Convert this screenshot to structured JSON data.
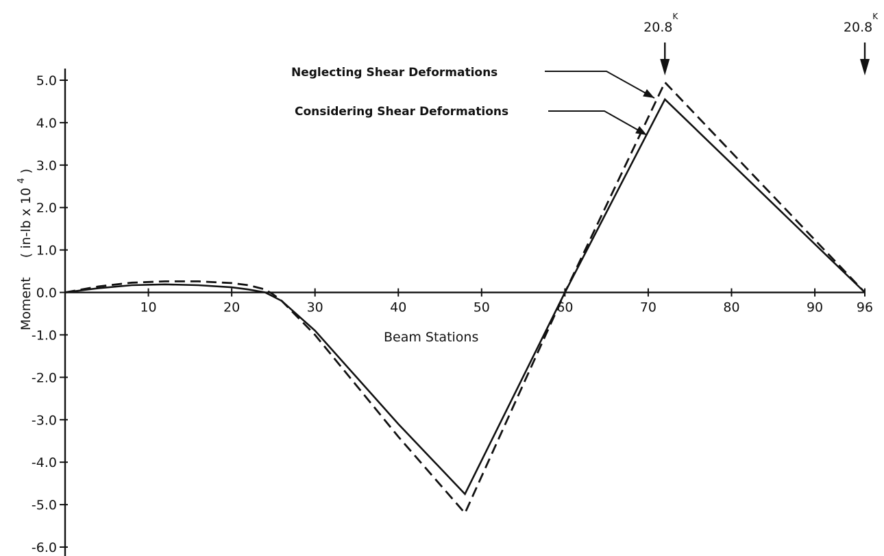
{
  "chart_data": {
    "type": "line",
    "title": "",
    "xlabel": "Beam Stations",
    "ylabel": "Moment",
    "ylabel_units": {
      "prefix": "( in-lb x 10",
      "exponent": "4",
      "suffix": " )"
    },
    "xlim": [
      0,
      96
    ],
    "ylim": [
      -6.0,
      5.0
    ],
    "x_ticks": [
      10,
      20,
      30,
      40,
      50,
      60,
      70,
      80,
      90,
      96
    ],
    "y_ticks": [
      5.0,
      4.0,
      3.0,
      2.0,
      1.0,
      0.0,
      -1.0,
      -2.0,
      -3.0,
      -4.0,
      -5.0,
      -6.0
    ],
    "x_tick_labels": [
      "10",
      "20",
      "30",
      "40",
      "50",
      "60",
      "70",
      "80",
      "90",
      "96"
    ],
    "y_tick_labels": [
      "5.0",
      "4.0",
      "3.0",
      "2.0",
      "1.0",
      "0.0",
      "-1.0",
      "-2.0",
      "-3.0",
      "-4.0",
      "-5.0",
      "-6.0"
    ],
    "grid": false,
    "series": [
      {
        "name": "Neglecting Shear Deformations",
        "style": "dashed",
        "x": [
          0,
          4,
          8,
          12,
          16,
          20,
          22,
          24,
          25,
          26,
          30,
          35,
          40,
          48,
          60,
          72,
          96
        ],
        "y": [
          0.0,
          0.14,
          0.23,
          0.26,
          0.26,
          0.22,
          0.17,
          0.07,
          -0.05,
          -0.2,
          -1.0,
          -2.2,
          -3.4,
          -5.2,
          0.0,
          4.95,
          0.0
        ]
      },
      {
        "name": "Considering Shear Deformations",
        "style": "solid",
        "x": [
          0,
          4,
          8,
          12,
          16,
          20,
          22,
          24,
          26,
          30,
          35,
          40,
          48,
          60,
          72,
          96
        ],
        "y": [
          0.0,
          0.1,
          0.17,
          0.19,
          0.17,
          0.12,
          0.07,
          0.0,
          -0.2,
          -0.9,
          -2.0,
          -3.1,
          -4.75,
          0.0,
          4.55,
          0.0
        ]
      }
    ],
    "loads": [
      {
        "label": "20.8",
        "sup": "K",
        "x": 72
      },
      {
        "label": "20.8",
        "sup": "K",
        "x": 96
      }
    ],
    "annotations": [
      {
        "text": "Neglecting Shear Deformations",
        "points_to_series": 0
      },
      {
        "text": "Considering Shear Deformations",
        "points_to_series": 1
      }
    ]
  }
}
